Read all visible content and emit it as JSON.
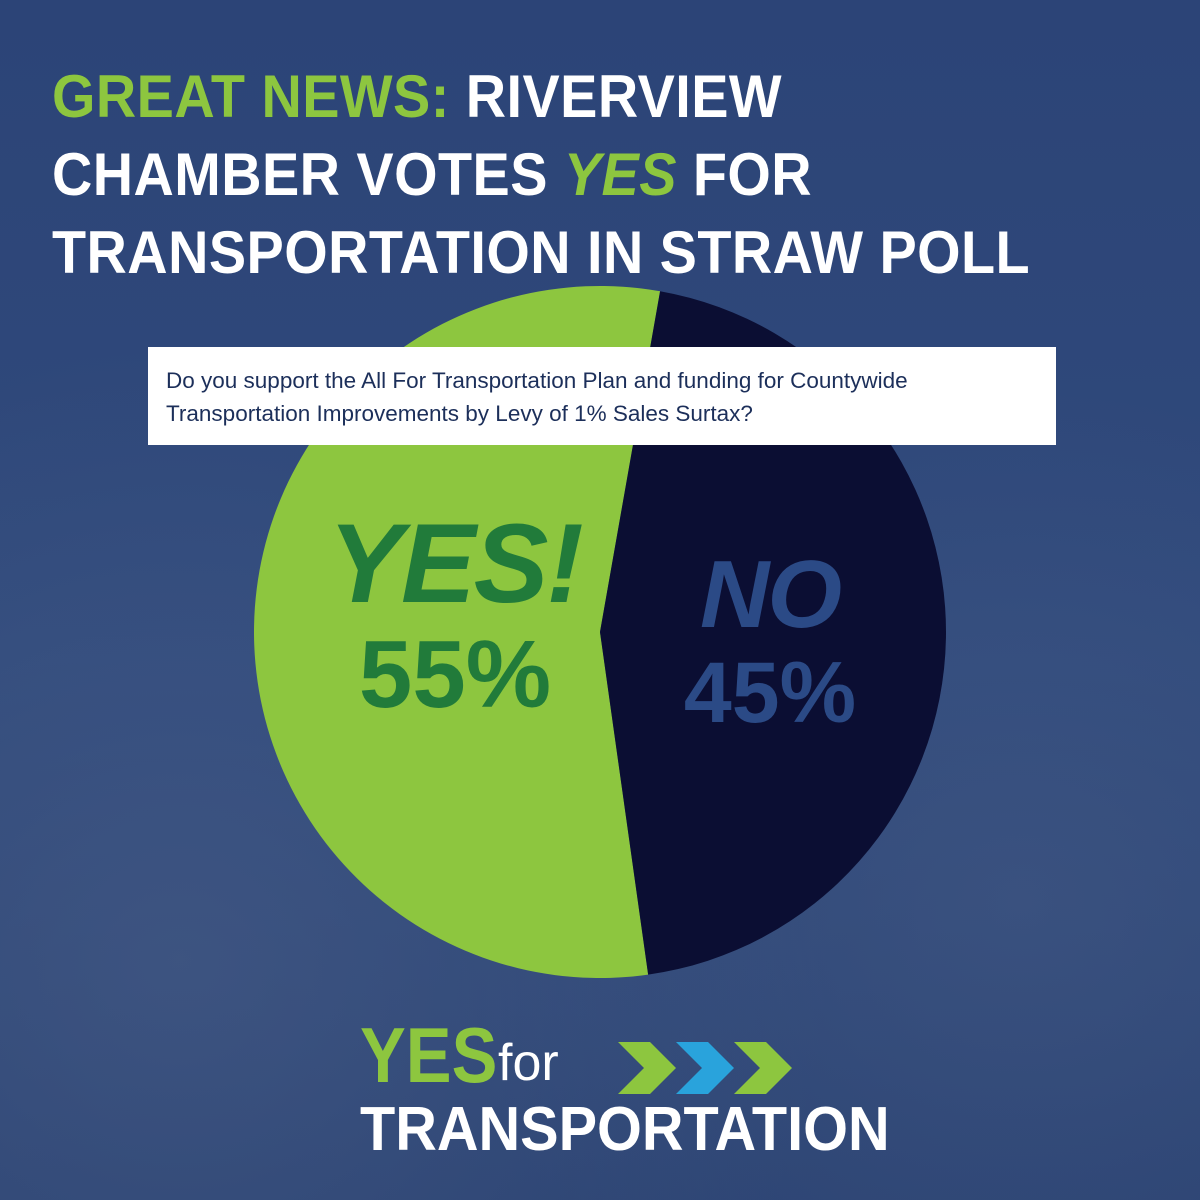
{
  "headline": {
    "lead": "GREAT NEWS:",
    "part1": "RIVERVIEW CHAMBER VOTES",
    "emphasis": "YES",
    "part2": "FOR TRANSPORTATION IN STRAW POLL"
  },
  "question": "Do you support the All For Transportation Plan and funding for Countywide Transportation Improvements by Levy of 1% Sales Surtax?",
  "chart_data": {
    "type": "pie",
    "title": "",
    "slices": [
      {
        "label": "YES!",
        "value": 55,
        "value_label": "55%",
        "color": "#8dc63f",
        "text_color": "#217b3a"
      },
      {
        "label": "NO",
        "value": 45,
        "value_label": "45%",
        "color": "#0b0e33",
        "text_color": "#2b4a86"
      }
    ]
  },
  "logo": {
    "yes": "YES",
    "for": "for",
    "transportation": "TRANSPORTATION",
    "chevron_colors": [
      "#8dc63f",
      "#29a3dc",
      "#8dc63f"
    ]
  },
  "colors": {
    "background": "#2d4576",
    "accent_green": "#8dc63f",
    "dark_navy": "#0b0e33",
    "white": "#ffffff"
  }
}
